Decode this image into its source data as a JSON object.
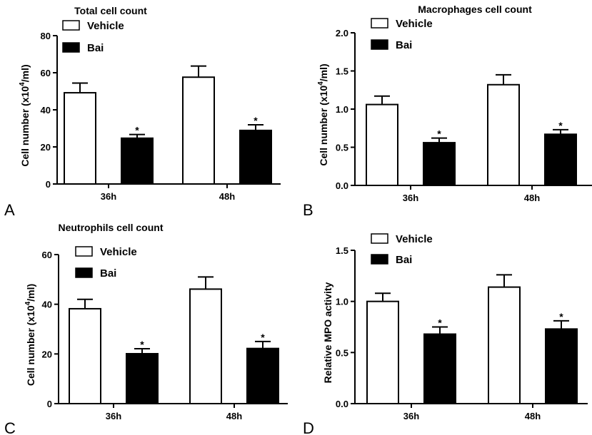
{
  "chart_data": [
    {
      "type": "bar",
      "panel_label": "A",
      "title": "Total cell count",
      "ylabel": "Cell number (x10",
      "ylabel_sup": "4",
      "ylabel_tail": "/ml)",
      "xlabel": "",
      "categories": [
        "36h",
        "48h"
      ],
      "ylim": [
        0,
        80
      ],
      "yticks": [
        0,
        20,
        40,
        60,
        80
      ],
      "ytick_labels": [
        "0",
        "20",
        "40",
        "60",
        "80"
      ],
      "legend": [
        "Vehicle",
        "Bai"
      ],
      "legend_position": "top-left",
      "series": [
        {
          "name": "Vehicle",
          "color": "#ffffff",
          "values": [
            49.2,
            57.6
          ],
          "error": [
            5.2,
            6.0
          ],
          "significance": [
            "",
            ""
          ]
        },
        {
          "name": "Bai",
          "color": "#000000",
          "values": [
            24.7,
            28.9
          ],
          "error": [
            2.0,
            3.0
          ],
          "significance": [
            "*",
            "*"
          ]
        }
      ]
    },
    {
      "type": "bar",
      "panel_label": "B",
      "title": "Macrophages cell count",
      "ylabel": "Cell number (x10",
      "ylabel_sup": "4",
      "ylabel_tail": "/ml)",
      "xlabel": "",
      "categories": [
        "36h",
        "48h"
      ],
      "ylim": [
        0,
        2.0
      ],
      "yticks": [
        0,
        0.5,
        1.0,
        1.5,
        2.0
      ],
      "ytick_labels": [
        "0.0",
        "0.5",
        "1.0",
        "1.5",
        "2.0"
      ],
      "legend": [
        "Vehicle",
        "Bai"
      ],
      "legend_position": "top-left",
      "series": [
        {
          "name": "Vehicle",
          "color": "#ffffff",
          "values": [
            1.06,
            1.32
          ],
          "error": [
            0.11,
            0.13
          ],
          "significance": [
            "",
            ""
          ]
        },
        {
          "name": "Bai",
          "color": "#000000",
          "values": [
            0.56,
            0.67
          ],
          "error": [
            0.06,
            0.06
          ],
          "significance": [
            "*",
            "*"
          ]
        }
      ]
    },
    {
      "type": "bar",
      "panel_label": "C",
      "title": "Neutrophils cell count",
      "ylabel": "Cell number (x10",
      "ylabel_sup": "4",
      "ylabel_tail": "/ml)",
      "xlabel": "",
      "categories": [
        "36h",
        "48h"
      ],
      "ylim": [
        0,
        60
      ],
      "yticks": [
        0,
        20,
        40,
        60
      ],
      "ytick_labels": [
        "0",
        "20",
        "40",
        "60"
      ],
      "legend": [
        "Vehicle",
        "Bai"
      ],
      "legend_position": "top-left",
      "series": [
        {
          "name": "Vehicle",
          "color": "#ffffff",
          "values": [
            38.2,
            46.1
          ],
          "error": [
            3.8,
            4.9
          ],
          "significance": [
            "",
            ""
          ]
        },
        {
          "name": "Bai",
          "color": "#000000",
          "values": [
            20.1,
            22.2
          ],
          "error": [
            2.0,
            2.8
          ],
          "significance": [
            "*",
            "*"
          ]
        }
      ]
    },
    {
      "type": "bar",
      "panel_label": "D",
      "title": "",
      "ylabel": "Relative MPO activity",
      "ylabel_sup": "",
      "ylabel_tail": "",
      "xlabel": "",
      "categories": [
        "36h",
        "48h"
      ],
      "ylim": [
        0,
        1.5
      ],
      "yticks": [
        0,
        0.5,
        1.0,
        1.5
      ],
      "ytick_labels": [
        "0.0",
        "0.5",
        "1.0",
        "1.5"
      ],
      "legend": [
        "Vehicle",
        "Bai"
      ],
      "legend_position": "top-left",
      "series": [
        {
          "name": "Vehicle",
          "color": "#ffffff",
          "values": [
            1.0,
            1.14
          ],
          "error": [
            0.08,
            0.12
          ],
          "significance": [
            "",
            ""
          ]
        },
        {
          "name": "Bai",
          "color": "#000000",
          "values": [
            0.68,
            0.73
          ],
          "error": [
            0.07,
            0.08
          ],
          "significance": [
            "*",
            "*"
          ]
        }
      ]
    }
  ]
}
